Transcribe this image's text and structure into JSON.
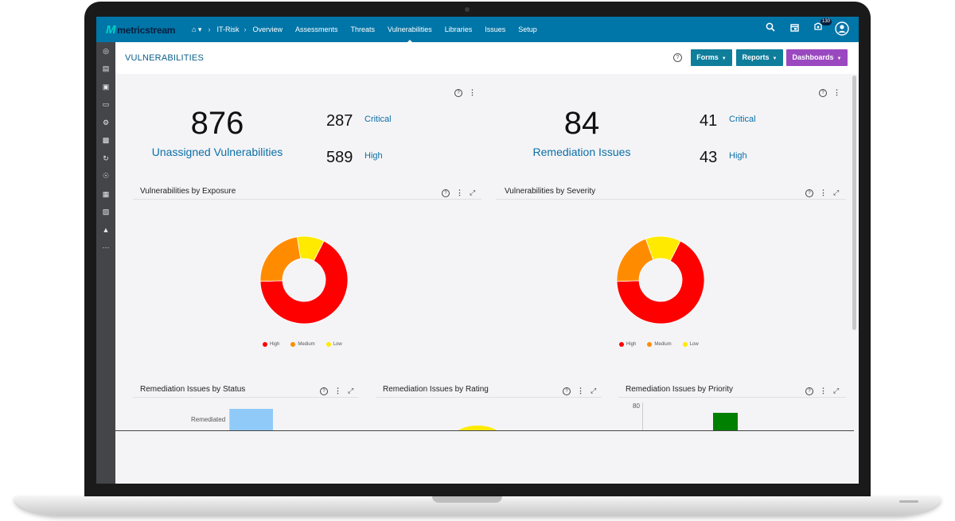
{
  "app": {
    "brand": "metricstream",
    "brand_mark": "M"
  },
  "nav": {
    "items": [
      "IT-Risk",
      "Overview",
      "Assessments",
      "Threats",
      "Vulnerabilities",
      "Libraries",
      "Issues",
      "Setup"
    ],
    "active": "Vulnerabilities"
  },
  "topbar": {
    "notification_count": "130"
  },
  "page": {
    "title": "VULNERABILITIES"
  },
  "buttons": {
    "forms": "Forms",
    "reports": "Reports",
    "dashboards": "Dashboards"
  },
  "colors": {
    "nav_bg": "#0075a8",
    "forms": "#0e7e9b",
    "reports": "#0e7e9b",
    "dashboards": "#9a48c0",
    "high": "#ff0000",
    "medium": "#ff8c00",
    "low": "#ffea00",
    "status_bar": "#90caf9",
    "priority_bar": "#008000"
  },
  "summary": [
    {
      "total": "876",
      "label": "Unassigned Vulnerabilities",
      "critical_count": "287",
      "critical_label": "Critical",
      "high_count": "589",
      "high_label": "High"
    },
    {
      "total": "84",
      "label": "Remediation Issues",
      "critical_count": "41",
      "critical_label": "Critical",
      "high_count": "43",
      "high_label": "High"
    }
  ],
  "charts": {
    "exposure_title": "Vulnerabilities by Exposure",
    "severity_title": "Vulnerabilities by Severity",
    "status_title": "Remediation Issues by Status",
    "rating_title": "Remediation Issues by Rating",
    "priority_title": "Remediation Issues by Priority",
    "legend": {
      "high": "High",
      "medium": "Medium",
      "low": "Low"
    },
    "status_category": "Remediated",
    "priority_tick": "80"
  },
  "chart_data": [
    {
      "type": "pie",
      "title": "Vulnerabilities by Exposure",
      "categories": [
        "High",
        "Medium",
        "Low"
      ],
      "values": [
        67,
        23,
        10
      ]
    },
    {
      "type": "pie",
      "title": "Vulnerabilities by Severity",
      "categories": [
        "High",
        "Medium",
        "Low"
      ],
      "values": [
        67,
        20,
        13
      ]
    }
  ]
}
